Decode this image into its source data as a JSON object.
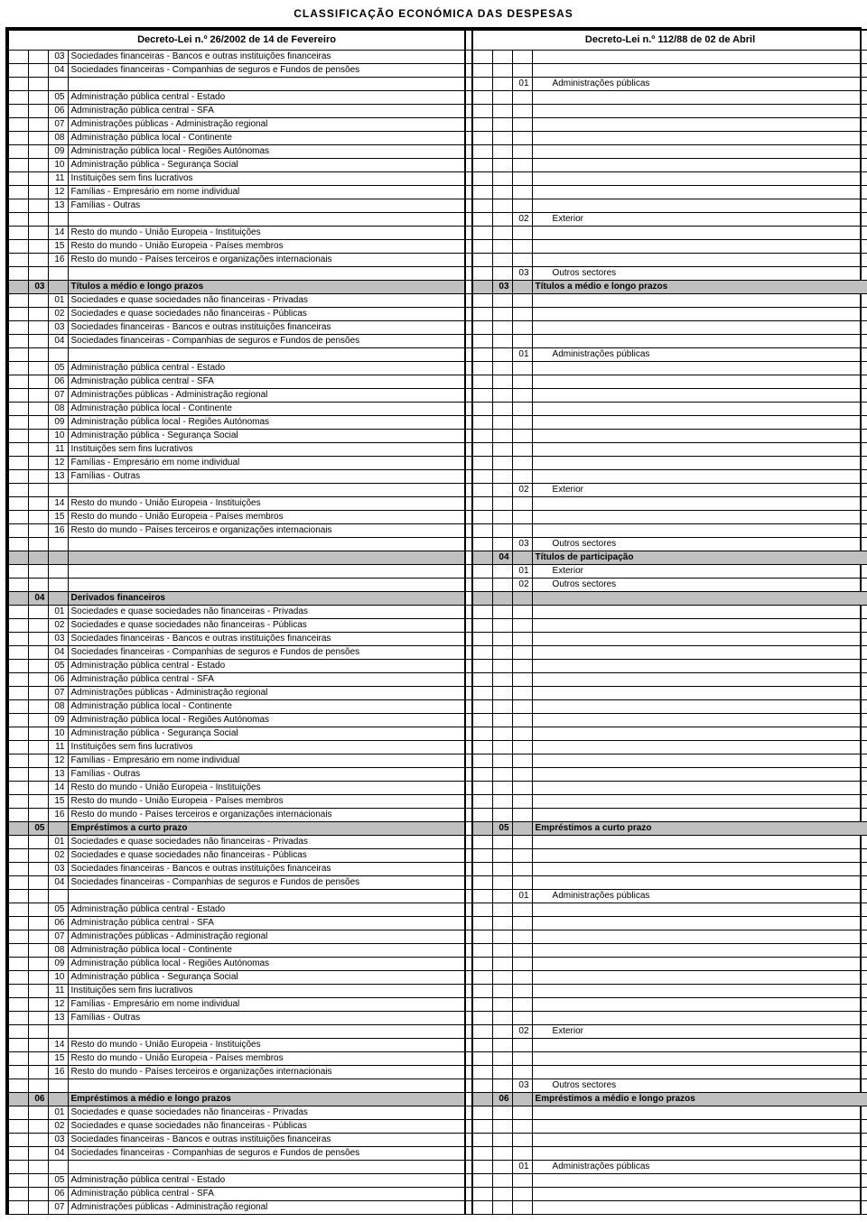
{
  "title": "CLASSIFICAÇÃO ECONÓMICA DAS DESPESAS",
  "header_left": "Decreto-Lei n.º 26/2002 de 14 de Fevereiro",
  "header_right": "Decreto-Lei n.º 112/88 de 02 de Abril",
  "col_widths": {
    "l1": 22,
    "l2": 22,
    "l3": 22,
    "ltext": 440,
    "mid": 8,
    "r1": 22,
    "r2": 22,
    "r3": 22,
    "rtext": 372
  },
  "rows": [
    {
      "l3": "03",
      "ltext": "Sociedades financeiras - Bancos e outras instituições financeiras"
    },
    {
      "l3": "04",
      "ltext": "Sociedades financeiras - Companhias de seguros e Fundos de pensões"
    },
    {
      "r3": "01",
      "rtext": "Administrações públicas"
    },
    {
      "l3": "05",
      "ltext": "Administração pública central - Estado"
    },
    {
      "l3": "06",
      "ltext": "Administração pública central - SFA"
    },
    {
      "l3": "07",
      "ltext": "Administrações públicas - Administração regional"
    },
    {
      "l3": "08",
      "ltext": "Administração pública local - Continente"
    },
    {
      "l3": "09",
      "ltext": "Administração pública local - Regiões Autónomas"
    },
    {
      "l3": "10",
      "ltext": "Administração pública - Segurança Social"
    },
    {
      "l3": "11",
      "ltext": "Instituições sem fins lucrativos"
    },
    {
      "l3": "12",
      "ltext": "Famílias - Empresário em nome individual"
    },
    {
      "l3": "13",
      "ltext": "Famílias - Outras"
    },
    {
      "r3": "02",
      "rtext": "Exterior"
    },
    {
      "l3": "14",
      "ltext": "Resto do mundo - União Europeia - Instituições"
    },
    {
      "l3": "15",
      "ltext": "Resto do mundo - União Europeia - Países membros"
    },
    {
      "l3": "16",
      "ltext": "Resto do mundo - Países terceiros e organizações internacionais"
    },
    {
      "r3": "03",
      "rtext": "Outros sectores"
    },
    {
      "grey": true,
      "l2": "03",
      "ltext": "Títulos a médio e longo prazos",
      "r2": "03",
      "rtext": "Títulos a médio e longo prazos"
    },
    {
      "l3": "01",
      "ltext": "Sociedades e quase sociedades não financeiras  - Privadas"
    },
    {
      "l3": "02",
      "ltext": "Sociedades e quase sociedades não financeiras  - Públicas"
    },
    {
      "l3": "03",
      "ltext": "Sociedades financeiras - Bancos e outras instituições financeiras"
    },
    {
      "l3": "04",
      "ltext": "Sociedades financeiras - Companhias de seguros e Fundos de pensões"
    },
    {
      "r3": "01",
      "rtext": "Administrações públicas"
    },
    {
      "l3": "05",
      "ltext": "Administração pública central - Estado"
    },
    {
      "l3": "06",
      "ltext": "Administração pública central - SFA"
    },
    {
      "l3": "07",
      "ltext": "Administrações públicas - Administração regional"
    },
    {
      "l3": "08",
      "ltext": "Administração pública local - Continente"
    },
    {
      "l3": "09",
      "ltext": "Administração pública local - Regiões Autónomas"
    },
    {
      "l3": "10",
      "ltext": "Administração pública - Segurança Social"
    },
    {
      "l3": "11",
      "ltext": "Instituições sem fins lucrativos"
    },
    {
      "l3": "12",
      "ltext": "Famílias - Empresário em nome individual"
    },
    {
      "l3": "13",
      "ltext": "Famílias - Outras"
    },
    {
      "r3": "02",
      "rtext": "Exterior"
    },
    {
      "l3": "14",
      "ltext": "Resto do mundo - União Europeia - Instituições"
    },
    {
      "l3": "15",
      "ltext": "Resto do mundo - União Europeia - Países membros"
    },
    {
      "l3": "16",
      "ltext": "Resto do mundo - Países terceiros e organizações internacionais"
    },
    {
      "r3": "03",
      "rtext": "Outros sectores"
    },
    {
      "grey": true,
      "r2": "04",
      "rtext": "Títulos de participação"
    },
    {
      "r3": "01",
      "rtext": "Exterior"
    },
    {
      "r3": "02",
      "rtext": "Outros sectores"
    },
    {
      "grey": true,
      "l2": "04",
      "ltext": "Derivados financeiros"
    },
    {
      "l3": "01",
      "ltext": "Sociedades e quase sociedades não financeiras  - Privadas"
    },
    {
      "l3": "02",
      "ltext": "Sociedades e quase sociedades não financeiras  - Públicas"
    },
    {
      "l3": "03",
      "ltext": "Sociedades financeiras - Bancos e outras instituições financeiras"
    },
    {
      "l3": "04",
      "ltext": "Sociedades financeiras - Companhias de seguros e Fundos de pensões"
    },
    {
      "l3": "05",
      "ltext": "Administração pública central - Estado"
    },
    {
      "l3": "06",
      "ltext": "Administração pública central - SFA"
    },
    {
      "l3": "07",
      "ltext": "Administrações públicas - Administração regional"
    },
    {
      "l3": "08",
      "ltext": "Administração pública local - Continente"
    },
    {
      "l3": "09",
      "ltext": "Administração pública local - Regiões Autónomas"
    },
    {
      "l3": "10",
      "ltext": "Administração pública - Segurança Social"
    },
    {
      "l3": "11",
      "ltext": "Instituições sem fins lucrativos"
    },
    {
      "l3": "12",
      "ltext": "Famílias - Empresário em nome individual"
    },
    {
      "l3": "13",
      "ltext": "Famílias - Outras"
    },
    {
      "l3": "14",
      "ltext": "Resto do mundo - União Europeia - Instituições"
    },
    {
      "l3": "15",
      "ltext": "Resto do mundo - União Europeia - Países membros"
    },
    {
      "l3": "16",
      "ltext": "Resto do mundo - Países terceiros e organizações internacionais"
    },
    {
      "grey": true,
      "l2": "05",
      "ltext": "Empréstimos a curto prazo",
      "r2": "05",
      "rtext": "Empréstimos a curto prazo"
    },
    {
      "l3": "01",
      "ltext": "Sociedades e quase sociedades não financeiras  - Privadas"
    },
    {
      "l3": "02",
      "ltext": "Sociedades e quase sociedades não financeiras  - Públicas"
    },
    {
      "l3": "03",
      "ltext": "Sociedades financeiras - Bancos e outras instituições financeiras"
    },
    {
      "l3": "04",
      "ltext": "Sociedades financeiras - Companhias de seguros e Fundos de pensões"
    },
    {
      "r3": "01",
      "rtext": "Administrações públicas"
    },
    {
      "l3": "05",
      "ltext": "Administração pública central - Estado"
    },
    {
      "l3": "06",
      "ltext": "Administração pública central - SFA"
    },
    {
      "l3": "07",
      "ltext": "Administrações públicas - Administração regional"
    },
    {
      "l3": "08",
      "ltext": "Administração pública local - Continente"
    },
    {
      "l3": "09",
      "ltext": "Administração pública local - Regiões Autónomas"
    },
    {
      "l3": "10",
      "ltext": "Administração pública - Segurança Social"
    },
    {
      "l3": "11",
      "ltext": "Instituições sem fins lucrativos"
    },
    {
      "l3": "12",
      "ltext": "Famílias - Empresário em nome individual"
    },
    {
      "l3": "13",
      "ltext": "Famílias - Outras"
    },
    {
      "r3": "02",
      "rtext": "Exterior"
    },
    {
      "l3": "14",
      "ltext": "Resto do mundo - União Europeia - Instituições"
    },
    {
      "l3": "15",
      "ltext": "Resto do mundo - União Europeia - Países membros"
    },
    {
      "l3": "16",
      "ltext": "Resto do mundo - Países terceiros e organizações internacionais"
    },
    {
      "r3": "03",
      "rtext": "Outros sectores"
    },
    {
      "grey": true,
      "l2": "06",
      "ltext": "Empréstimos a médio e longo prazos",
      "r2": "06",
      "rtext": "Empréstimos a médio e longo prazos"
    },
    {
      "l3": "01",
      "ltext": "Sociedades e quase sociedades não financeiras  - Privadas"
    },
    {
      "l3": "02",
      "ltext": "Sociedades e quase sociedades não financeiras  - Públicas"
    },
    {
      "l3": "03",
      "ltext": "Sociedades financeiras - Bancos e outras instituições financeiras"
    },
    {
      "l3": "04",
      "ltext": "Sociedades financeiras - Companhias de seguros e Fundos de pensões"
    },
    {
      "r3": "01",
      "rtext": "Administrações públicas"
    },
    {
      "l3": "05",
      "ltext": "Administração pública central - Estado"
    },
    {
      "l3": "06",
      "ltext": "Administração pública central - SFA"
    },
    {
      "l3": "07",
      "ltext": "Administrações públicas - Administração regional"
    }
  ]
}
